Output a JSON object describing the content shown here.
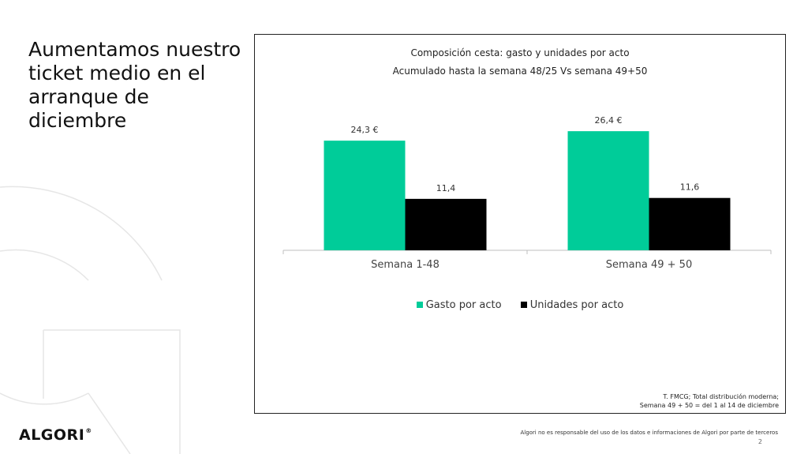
{
  "slide": {
    "headline": "Aumentamos nuestro ticket medio en el arranque de diciembre",
    "logo": "ALGORI",
    "logo_mark": "®",
    "disclaimer": "Algori no es responsable del uso de los datos e informaciones de Algori por parte de terceros",
    "page_number": "2"
  },
  "chart_data": {
    "type": "bar",
    "title": "Composición cesta: gasto y unidades por acto",
    "subtitle": "Acumulado hasta la semana 48/25 Vs semana 49+50",
    "categories": [
      "Semana 1-48",
      "Semana 49 + 50"
    ],
    "series": [
      {
        "name": "Gasto por acto",
        "values": [
          24.3,
          26.4
        ],
        "labels": [
          "24,3 €",
          "26,4 €"
        ],
        "color": "#00cc99"
      },
      {
        "name": "Unidades por acto",
        "values": [
          11.4,
          11.6
        ],
        "labels": [
          "11,4",
          "11,6"
        ],
        "color": "#000000"
      }
    ],
    "ylim": [
      0,
      28
    ],
    "grid": false,
    "legend_position": "bottom",
    "source_lines": [
      "T. FMCG; Total distribución moderna;",
      "Semana 49 + 50 = del 1 al 14 de diciembre"
    ]
  }
}
